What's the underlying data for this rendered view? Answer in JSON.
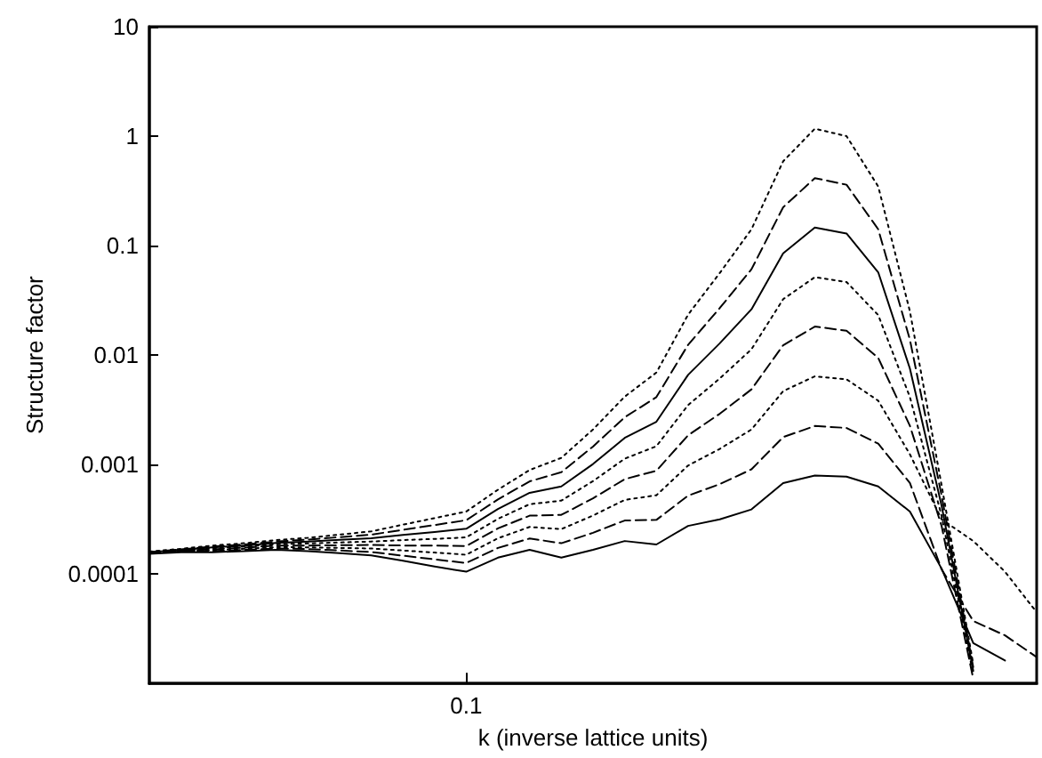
{
  "chart_data": {
    "type": "line",
    "xlabel": "k (inverse lattice units)",
    "ylabel": "Structure factor",
    "log": "y",
    "grid": false,
    "marker": "none",
    "ylim": [
      1e-05,
      10
    ],
    "yticks": [
      0.0001,
      0.001,
      0.01,
      0.1,
      1,
      10
    ],
    "categories": [
      null,
      null,
      null,
      null,
      null,
      null,
      null,
      null,
      null,
      null,
      "0.1",
      null,
      null,
      null,
      null,
      null,
      null,
      null,
      null,
      null,
      null,
      null,
      null,
      null,
      null,
      null,
      null,
      null,
      null
    ],
    "series": [
      {
        "color": "#000000",
        "line_style": "solid",
        "values": [
          0.000153,
          0.000158,
          0.000158,
          0.000162,
          0.000166,
          0.000162,
          0.000155,
          0.000148,
          0.000132,
          0.000117,
          0.000105,
          0.000141,
          0.000166,
          0.000141,
          0.000166,
          0.0002,
          0.000186,
          0.000275,
          0.000316,
          0.000389,
          0.000676,
          0.000794,
          0.000776,
          0.000631,
          0.000372,
          0.000112,
          2.34e-05,
          1.62e-05,
          null
        ]
      },
      {
        "color": "#000000",
        "line_style": "dashed",
        "values": [
          0.000154,
          0.00016,
          0.000162,
          0.000166,
          0.000171,
          0.000169,
          0.000164,
          0.000159,
          0.000147,
          0.000136,
          0.000126,
          0.000173,
          0.000211,
          0.000191,
          0.000238,
          0.000308,
          0.000312,
          0.00052,
          0.000662,
          0.000904,
          0.00178,
          0.00225,
          0.00216,
          0.00155,
          0.000678,
          0.00011,
          3.72e-05,
          2.75e-05,
          1.74e-05
        ]
      },
      {
        "color": "#000000",
        "line_style": "dotted",
        "values": [
          0.000155,
          0.000162,
          0.000165,
          0.00017,
          0.000176,
          0.000175,
          0.000173,
          0.000171,
          0.000164,
          0.000157,
          0.00015,
          0.000212,
          0.000269,
          0.000257,
          0.000342,
          0.000475,
          0.000524,
          0.000979,
          0.00139,
          0.00209,
          0.00468,
          0.0064,
          0.00601,
          0.00383,
          0.00124,
          0.000316,
          0.0002,
          0.000105,
          4.47e-05
        ]
      },
      {
        "color": "#000000",
        "line_style": "dashed",
        "values": [
          0.000156,
          0.000163,
          0.000168,
          0.000174,
          0.000182,
          0.000182,
          0.000183,
          0.000184,
          0.000182,
          0.000182,
          0.00018,
          0.000261,
          0.000341,
          0.000347,
          0.000491,
          0.000735,
          0.000877,
          0.00185,
          0.00291,
          0.00486,
          0.0123,
          0.0182,
          0.0167,
          0.00942,
          0.00226,
          0.000275,
          1.1e-05,
          null,
          null
        ]
      },
      {
        "color": "#000000",
        "line_style": "dotted",
        "values": [
          0.000157,
          0.000165,
          0.000171,
          0.000178,
          0.000187,
          0.00019,
          0.000194,
          0.000198,
          0.000204,
          0.000209,
          0.000216,
          0.000319,
          0.000434,
          0.000468,
          0.000706,
          0.00113,
          0.00147,
          0.00349,
          0.00611,
          0.0113,
          0.0324,
          0.0515,
          0.0465,
          0.0232,
          0.00413,
          0.00034,
          1.2e-05,
          null,
          null
        ]
      },
      {
        "color": "#000000",
        "line_style": "solid",
        "values": [
          0.000158,
          0.000166,
          0.000175,
          0.000182,
          0.000192,
          0.000198,
          0.000205,
          0.000212,
          0.000227,
          0.000242,
          0.000259,
          0.000392,
          0.000551,
          0.000631,
          0.00101,
          0.00175,
          0.00246,
          0.00659,
          0.0128,
          0.0262,
          0.0851,
          0.146,
          0.129,
          0.0571,
          0.00753,
          0.000421,
          1.3e-05,
          null,
          null
        ]
      },
      {
        "color": "#000000",
        "line_style": "dashed",
        "values": [
          0.000159,
          0.000168,
          0.000178,
          0.000186,
          0.000198,
          0.000206,
          0.000217,
          0.000229,
          0.000253,
          0.00028,
          0.00031,
          0.00048,
          0.000702,
          0.000851,
          0.00146,
          0.0027,
          0.00413,
          0.0124,
          0.0269,
          0.0608,
          0.224,
          0.414,
          0.36,
          0.141,
          0.0138,
          0.000521,
          1.4e-05,
          null,
          null
        ]
      },
      {
        "color": "#000000",
        "line_style": "dotted",
        "values": [
          0.00016,
          0.00017,
          0.000182,
          0.000191,
          0.000204,
          0.000214,
          0.000229,
          0.000245,
          0.000282,
          0.000324,
          0.000372,
          0.000589,
          0.000891,
          0.00115,
          0.00209,
          0.00417,
          0.00692,
          0.0234,
          0.0562,
          0.141,
          0.589,
          1.17,
          1.0,
          0.347,
          0.0251,
          0.000646,
          1.5e-05,
          null,
          null
        ]
      }
    ]
  }
}
